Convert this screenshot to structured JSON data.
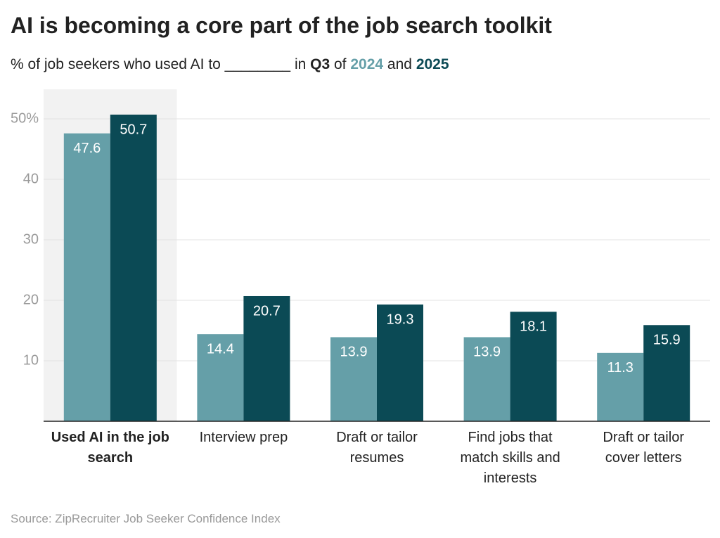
{
  "chart_data": {
    "type": "bar",
    "title": "AI is becoming a core part of the job search toolkit",
    "subtitle": {
      "prefix": "% of job seekers who used AI to ________ in",
      "quarter": "Q3",
      "joiner": "of",
      "conjunction": "and"
    },
    "categories": [
      "Used AI in the job search",
      "Interview prep",
      "Draft or tailor resumes",
      "Find jobs that match skills and interests",
      "Draft or tailor cover letters"
    ],
    "series": [
      {
        "name": "2024",
        "color": "#659fa8",
        "values": [
          47.6,
          14.4,
          13.9,
          13.9,
          11.3
        ]
      },
      {
        "name": "2025",
        "color": "#0b4a55",
        "values": [
          50.7,
          20.7,
          19.3,
          18.1,
          15.9
        ]
      }
    ],
    "ylim": [
      0,
      50
    ],
    "yticks": [
      10,
      20,
      30,
      40,
      {
        "value": 50,
        "label": "50%"
      }
    ],
    "grid": true,
    "highlight": 0,
    "source": "Source: ZipRecruiter Job Seeker Confidence Index"
  }
}
